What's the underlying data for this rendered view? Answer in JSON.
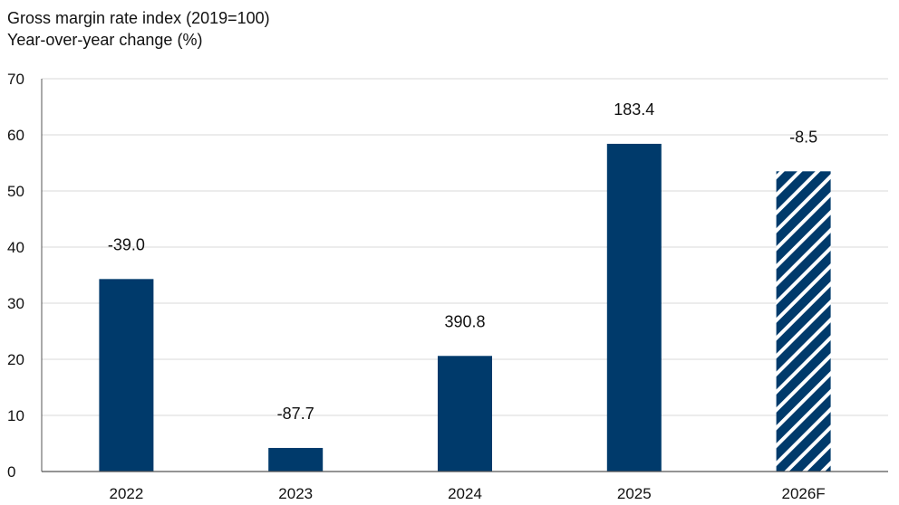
{
  "title": "Gross margin rate index (2019=100)",
  "subtitle": "Year-over-year change (%)",
  "chart_data": {
    "type": "bar",
    "title": "Gross margin rate index (2019=100)",
    "subtitle": "Year-over-year change (%)",
    "categories": [
      "2022",
      "2023",
      "2024",
      "2025",
      "2026F"
    ],
    "values": [
      34.3,
      4.2,
      20.6,
      58.4,
      53.5
    ],
    "data_labels": [
      "-39.0",
      "-87.7",
      "390.8",
      "183.4",
      "-8.5"
    ],
    "hatched": [
      false,
      false,
      false,
      false,
      true
    ],
    "ylim": [
      0,
      70
    ],
    "yticks": [
      0,
      10,
      20,
      30,
      40,
      50,
      60,
      70
    ],
    "grid": true,
    "colors": {
      "bar": "#003a6b",
      "grid": "#d9d9d9",
      "axis": "#555555"
    }
  }
}
